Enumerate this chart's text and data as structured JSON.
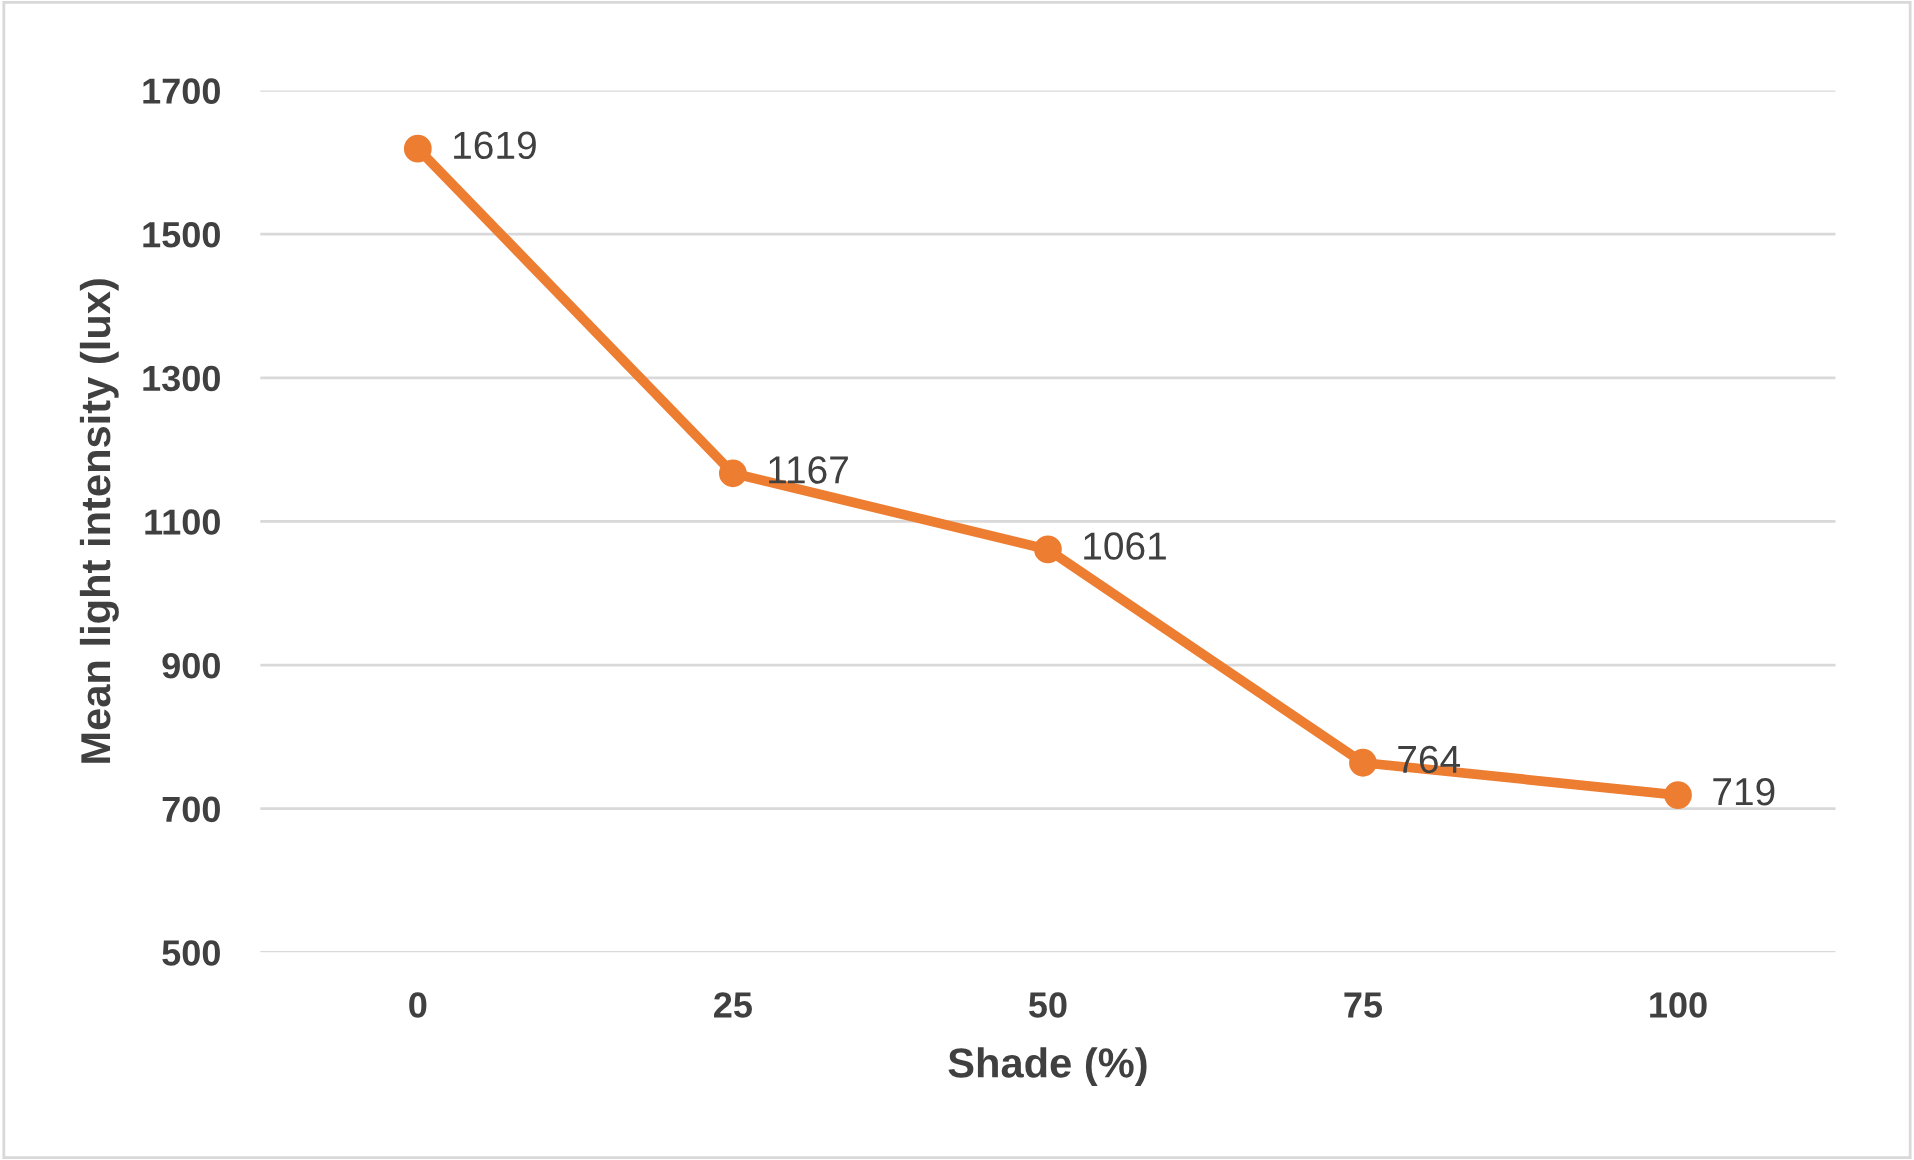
{
  "chart_data": {
    "type": "line",
    "xlabel": "Shade (%)",
    "ylabel": "Mean light intensity (lux)",
    "categories": [
      "0",
      "25",
      "50",
      "75",
      "100"
    ],
    "series": [
      {
        "color": "#ed7d31",
        "values": [
          1619,
          1167,
          1061,
          764,
          719
        ]
      }
    ],
    "ylim": [
      500,
      1700
    ],
    "yticks": [
      500,
      700,
      900,
      1100,
      1300,
      1500,
      1700
    ],
    "grid": "y",
    "marker": "circle",
    "line_style": "solid",
    "data_labels": true
  }
}
